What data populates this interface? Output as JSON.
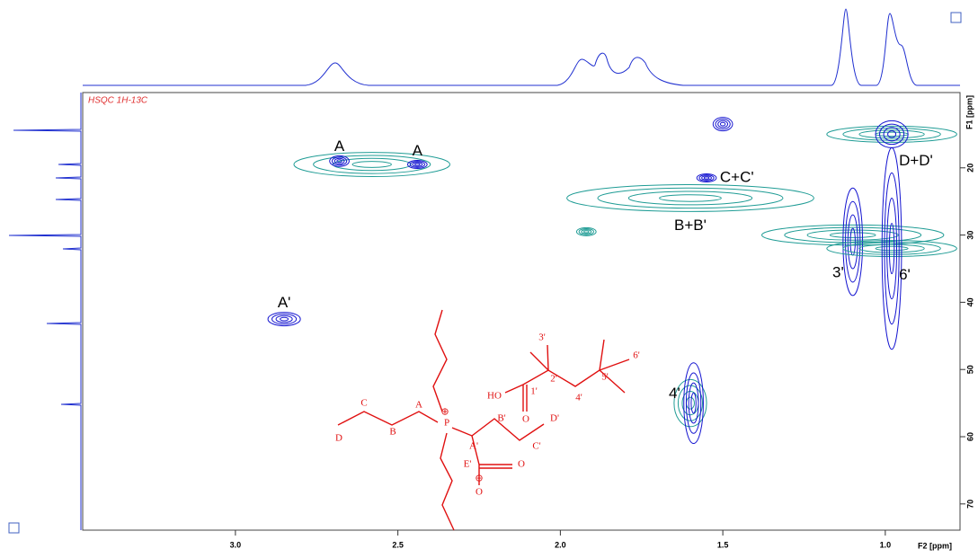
{
  "chart_data": {
    "type": "hsqc",
    "title": "HSQC 1H-13C",
    "xlabel": "F2 [ppm]",
    "ylabel": "F1 [ppm]",
    "xlim": [
      3.47,
      0.77
    ],
    "ylim": [
      8.8,
      73.9
    ],
    "xticks": [
      {
        "value": 3,
        "label": "3.0"
      },
      2.5,
      {
        "value": 2,
        "label": "2.0"
      },
      1.5,
      {
        "value": 1,
        "label": "1.0"
      }
    ],
    "yticks": [
      20,
      30,
      40,
      50,
      60,
      70
    ],
    "peaks": [
      {
        "x": 2.58,
        "y": 19.5,
        "dx": 0.24,
        "dy": 1.8,
        "color": "#1f9c95"
      },
      {
        "x": 2.68,
        "y": 19,
        "dx": 0.03,
        "dy": 0.8,
        "color": "#1414d0",
        "label": "A",
        "label_pos": "above"
      },
      {
        "x": 2.44,
        "y": 19.5,
        "dx": 0.03,
        "dy": 0.6,
        "color": "#1414d0",
        "label": "A",
        "label_pos": "above"
      },
      {
        "x": 2.85,
        "y": 42.5,
        "dx": 0.05,
        "dy": 1,
        "color": "#1414d0",
        "label": "A'",
        "label_pos": "above"
      },
      {
        "x": 1.6,
        "y": 24.5,
        "dx": 0.38,
        "dy": 2,
        "color": "#1f9c95",
        "label": "B+B'",
        "label_pos": "below"
      },
      {
        "x": 1.55,
        "y": 21.5,
        "dx": 0.03,
        "dy": 0.6,
        "color": "#1414d0",
        "label": "C+C'",
        "label_pos": "right"
      },
      {
        "x": 1.5,
        "y": 13.5,
        "dx": 0.03,
        "dy": 1,
        "color": "#1414d0"
      },
      {
        "x": 1.92,
        "y": 29.5,
        "dx": 0.03,
        "dy": 0.6,
        "color": "#1f9c95"
      },
      {
        "x": 1.1,
        "y": 30,
        "dx": 0.28,
        "dy": 1.5,
        "color": "#1f9c95"
      },
      {
        "x": 1.1,
        "y": 31,
        "dx": 0.03,
        "dy": 8,
        "color": "#1414d0",
        "label": "3'",
        "label_pos": "below-left"
      },
      {
        "x": 0.98,
        "y": 32,
        "dx": 0.2,
        "dy": 1.2,
        "color": "#1f9c95"
      },
      {
        "x": 0.98,
        "y": 32,
        "dx": 0.03,
        "dy": 15,
        "color": "#1414d0",
        "label": "6'",
        "label_pos": "below-right"
      },
      {
        "x": 0.98,
        "y": 15,
        "dx": 0.2,
        "dy": 1.2,
        "color": "#1f9c95"
      },
      {
        "x": 0.98,
        "y": 15,
        "dx": 0.05,
        "dy": 2,
        "color": "#1414d0",
        "label": "D+D'",
        "label_pos": "below-right"
      },
      {
        "x": 1.6,
        "y": 55,
        "dx": 0.05,
        "dy": 3.5,
        "color": "#1f9c95"
      },
      {
        "x": 1.59,
        "y": 55,
        "dx": 0.03,
        "dy": 6,
        "color": "#1414d0",
        "label": "4'",
        "label_pos": "left"
      }
    ]
  },
  "structure": {
    "labels": [
      "A",
      "B",
      "C",
      "D",
      "A'",
      "B'",
      "C'",
      "D'",
      "E'",
      "1'",
      "2'",
      "3'",
      "4'",
      "5'",
      "6'",
      "HO",
      "O",
      "O",
      "O",
      "P",
      "⊕",
      "⊖"
    ]
  }
}
